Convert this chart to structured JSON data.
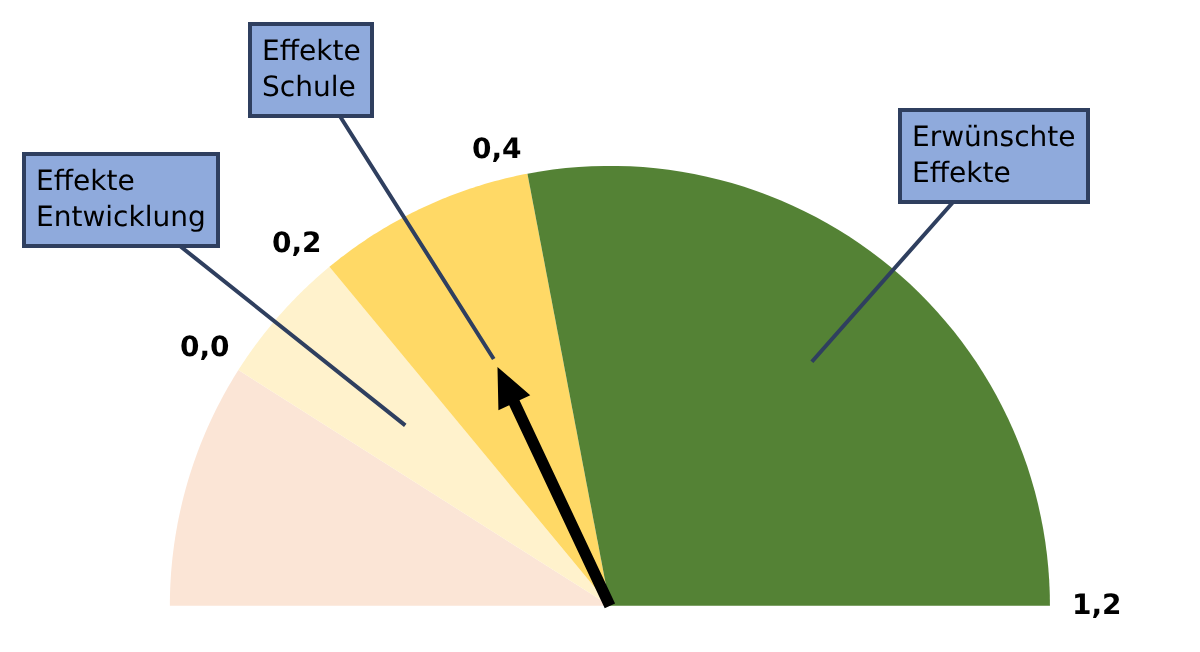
{
  "chart_data": {
    "type": "pie",
    "categories": [
      null,
      "Effekte Entwicklung",
      "Effekte Schule",
      "Erwünschte Effekte"
    ],
    "values": [
      18,
      10,
      16,
      56
    ],
    "colors": [
      "#fbe5d6",
      "#fff2cc",
      "#ffd966",
      "#548235"
    ],
    "needle": "Effekte Schule",
    "annotations": [
      "0,0",
      "0,2",
      "0,4",
      "1,2"
    ]
  }
}
